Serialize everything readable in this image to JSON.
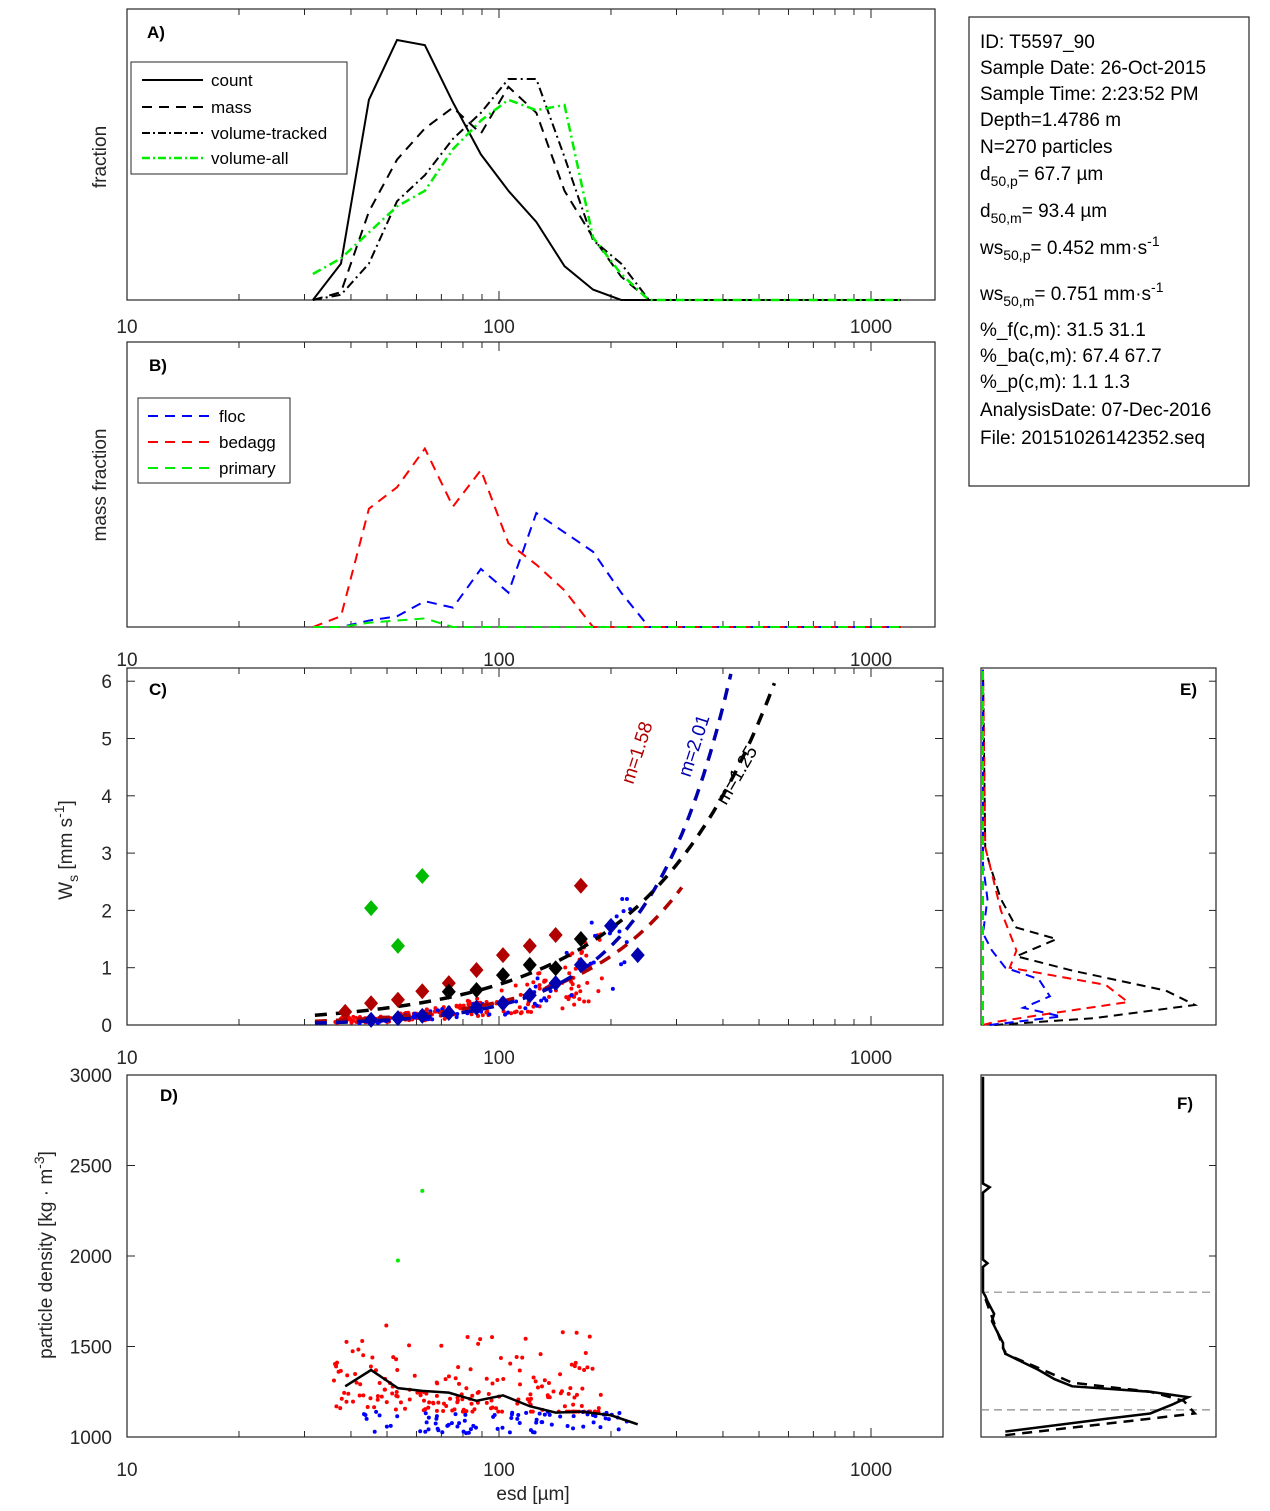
{
  "info_box": {
    "lines": [
      {
        "text": "ID: T5597_90"
      },
      {
        "text": "Sample Date: 26-Oct-2015"
      },
      {
        "text": "Sample Time:  2:23:52 PM"
      },
      {
        "text": "Depth=1.4786 m"
      },
      {
        "text": "N=270 particles"
      },
      {
        "base": "d",
        "sub": "50,p",
        "rest": "=  67.7 µm"
      },
      {
        "base": "d",
        "sub": "50,m",
        "rest": "=  93.4 µm"
      },
      {
        "base": "ws",
        "sub": "50,p",
        "rest": "= 0.452 mm·s",
        "sup": "-1"
      },
      {
        "base": "ws",
        "sub": "50,m",
        "rest": "= 0.751 mm·s",
        "sup": "-1"
      },
      {
        "text": "%_f(c,m): 31.5 31.1"
      },
      {
        "text": "%_ba(c,m): 67.4 67.7"
      },
      {
        "text": "%_p(c,m): 1.1 1.3"
      },
      {
        "text": "AnalysisDate: 07-Dec-2016"
      },
      {
        "text": "File: 20151026142352.seq"
      }
    ]
  },
  "chart_data": [
    {
      "id": "A",
      "panel_label": "A)",
      "type": "line",
      "xscale": "log",
      "xlim": [
        10,
        1300
      ],
      "xticks": [
        10,
        100,
        1000
      ],
      "xtick_labels": [
        "10",
        "100",
        "1000"
      ],
      "ylabel": "fraction",
      "ylim": [
        0,
        1
      ],
      "legend": {
        "placement": "top-left",
        "entries": [
          "count",
          "mass",
          "volume-tracked",
          "volume-all"
        ]
      },
      "x": [
        31.6,
        37.6,
        44.7,
        53.2,
        63.2,
        75.2,
        89.4,
        106,
        126,
        150,
        179,
        213,
        253,
        301,
        358,
        425,
        506,
        601,
        715,
        851,
        1012,
        1203
      ],
      "series": [
        {
          "name": "count",
          "style": "solid",
          "color": "#000000",
          "values": [
            0,
            0.14,
            0.77,
            1.0,
            0.98,
            0.76,
            0.56,
            0.42,
            0.3,
            0.13,
            0.04,
            0,
            0,
            0,
            0,
            0,
            0,
            0,
            0,
            0,
            0,
            0
          ]
        },
        {
          "name": "mass",
          "style": "dashed",
          "color": "#000000",
          "values": [
            0,
            0.03,
            0.34,
            0.54,
            0.66,
            0.74,
            0.64,
            0.82,
            0.72,
            0.42,
            0.24,
            0.09,
            0,
            0,
            0,
            0,
            0,
            0,
            0,
            0,
            0,
            0
          ]
        },
        {
          "name": "volume-tracked",
          "style": "dashdot",
          "color": "#000000",
          "values": [
            0,
            0.02,
            0.14,
            0.38,
            0.48,
            0.62,
            0.72,
            0.85,
            0.85,
            0.55,
            0.23,
            0.14,
            0,
            0,
            0,
            0,
            0,
            0,
            0,
            0,
            0,
            0
          ]
        },
        {
          "name": "volume-all",
          "style": "dashdot",
          "color": "#00ee00",
          "values": [
            0.1,
            0.16,
            0.26,
            0.36,
            0.42,
            0.58,
            0.69,
            0.77,
            0.73,
            0.75,
            0.24,
            0.1,
            0,
            0,
            0,
            0,
            0,
            0,
            0,
            0,
            0,
            0
          ]
        }
      ]
    },
    {
      "id": "B",
      "panel_label": "B)",
      "type": "line",
      "xscale": "log",
      "xlim": [
        10,
        1300
      ],
      "xticks": [
        10,
        100,
        1000
      ],
      "xtick_labels": [
        "10",
        "100",
        "1000"
      ],
      "ylabel": "mass fraction",
      "ylim": [
        0,
        1
      ],
      "legend": {
        "placement": "top-left",
        "entries": [
          "floc",
          "bedagg",
          "primary"
        ]
      },
      "x": [
        31.6,
        37.6,
        44.7,
        53.2,
        63.2,
        75.2,
        89.4,
        106,
        126,
        150,
        179,
        213,
        253,
        301,
        358,
        425,
        506,
        601,
        715,
        851,
        1012,
        1203
      ],
      "series": [
        {
          "name": "floc",
          "color": "#0000ff",
          "values": [
            0,
            0,
            0.03,
            0.05,
            0.12,
            0.09,
            0.27,
            0.16,
            0.53,
            0.44,
            0.35,
            0.16,
            0,
            0,
            0,
            0,
            0,
            0,
            0,
            0,
            0,
            0
          ]
        },
        {
          "name": "bedagg",
          "color": "#ff0000",
          "values": [
            0,
            0.05,
            0.55,
            0.65,
            0.83,
            0.56,
            0.73,
            0.39,
            0.29,
            0.17,
            0,
            0,
            0,
            0,
            0,
            0,
            0,
            0,
            0,
            0,
            0,
            0
          ]
        },
        {
          "name": "primary",
          "color": "#00ee00",
          "values": [
            0,
            0,
            0.02,
            0.03,
            0.04,
            0,
            0,
            0,
            0,
            0,
            0,
            0,
            0,
            0,
            0,
            0,
            0,
            0,
            0,
            0,
            0,
            0
          ]
        }
      ]
    },
    {
      "id": "C",
      "panel_label": "C)",
      "type": "scatter",
      "xscale": "log",
      "xlim": [
        10,
        1550
      ],
      "xticks": [
        10,
        100,
        1000
      ],
      "xtick_labels": [
        "10",
        "100",
        "1000"
      ],
      "ylabel": "W_s [mm s^-1]",
      "ylim": [
        0,
        6.2
      ],
      "yticks": [
        0,
        1,
        2,
        3,
        4,
        5,
        6
      ],
      "ytick_labels": [
        "0",
        "1",
        "2",
        "3",
        "4",
        "5",
        "6"
      ],
      "fits": [
        {
          "name": "bedagg fit",
          "label": "m=1.58",
          "color": "#b00000",
          "exponent": 1.58,
          "coef": 0.000278,
          "x_range": [
            32,
            310
          ]
        },
        {
          "name": "floc fit",
          "label": "m=2.01",
          "color": "#0000b0",
          "exponent": 2.01,
          "coef": 3.27e-05,
          "x_range": [
            32,
            420
          ]
        },
        {
          "name": "all fit",
          "label": "m=1.25",
          "color": "#000000",
          "exponent": 1.25,
          "coef": 0.00224,
          "x_range": [
            32,
            550
          ]
        }
      ],
      "binned": [
        {
          "name": "bedagg median",
          "color": "#b00000",
          "x": [
            38.6,
            45.3,
            53.5,
            62.2,
            73.3,
            87,
            102.5,
            121,
            142,
            166
          ],
          "y": [
            0.23,
            0.38,
            0.44,
            0.59,
            0.73,
            0.96,
            1.22,
            1.38,
            1.57,
            2.43
          ]
        },
        {
          "name": "floc median",
          "color": "#0000b0",
          "x": [
            45.3,
            53.5,
            62.2,
            73.3,
            87,
            102.5,
            121,
            142,
            166,
            200,
            236
          ],
          "y": [
            0.09,
            0.12,
            0.16,
            0.21,
            0.3,
            0.38,
            0.52,
            0.73,
            1.05,
            1.73,
            1.22
          ]
        },
        {
          "name": "all median",
          "color": "#000000",
          "x": [
            73.3,
            87,
            102.5,
            121,
            142,
            166
          ],
          "y": [
            0.58,
            0.61,
            0.87,
            1.05,
            0.99,
            1.5
          ]
        },
        {
          "name": "primary",
          "color": "#00bb00",
          "x": [
            45.3,
            53.5,
            62.2
          ],
          "y": [
            2.04,
            1.38,
            2.6
          ]
        }
      ],
      "scatter_series": [
        {
          "name": "bedagg particles",
          "color": "#ff0000"
        },
        {
          "name": "floc particles",
          "color": "#0000ff"
        }
      ]
    },
    {
      "id": "D",
      "panel_label": "D)",
      "type": "scatter",
      "xscale": "log",
      "xlim": [
        10,
        1550
      ],
      "xticks": [
        10,
        100,
        1000
      ],
      "xtick_labels": [
        "10",
        "100",
        "1000"
      ],
      "xlabel": "esd [µm]",
      "ylabel": "particle density [kg · m^-3]",
      "ylim": [
        1000,
        3000
      ],
      "yticks": [
        1000,
        1500,
        2000,
        2500,
        3000
      ],
      "ytick_labels": [
        "1000",
        "1500",
        "2000",
        "2500",
        "3000"
      ],
      "median_line": {
        "color": "#000000",
        "x": [
          38.6,
          45.3,
          53.5,
          62.2,
          73.3,
          87,
          102.5,
          121,
          142,
          166,
          200,
          236
        ],
        "y": [
          1280,
          1370,
          1270,
          1255,
          1245,
          1200,
          1230,
          1170,
          1135,
          1140,
          1120,
          1070
        ]
      },
      "primary_points": {
        "color": "#00ee00",
        "x": [
          53.5,
          62.2
        ],
        "y": [
          1975,
          2360
        ]
      },
      "scatter_series": [
        {
          "name": "bedagg particles",
          "color": "#ff0000"
        },
        {
          "name": "floc particles",
          "color": "#0000ff"
        }
      ]
    },
    {
      "id": "E",
      "panel_label": "E)",
      "type": "line",
      "note": "Settling velocity distributions (horizontal: fraction, vertical: W_s)",
      "ylim": [
        0,
        6.2
      ],
      "xlim": [
        0,
        1
      ],
      "series": [
        {
          "name": "all",
          "style": "dashed",
          "color": "#000000",
          "y": [
            0,
            0.12,
            0.35,
            0.6,
            0.95,
            1.2,
            1.5,
            1.7,
            2.2,
            2.8,
            3.1,
            6.2
          ],
          "x": [
            0.05,
            0.5,
            0.95,
            0.82,
            0.4,
            0.15,
            0.33,
            0.15,
            0.08,
            0.03,
            0.01,
            0
          ]
        },
        {
          "name": "bedagg",
          "style": "dashed",
          "color": "#ff0000",
          "y": [
            0,
            0.05,
            0.2,
            0.4,
            0.7,
            1.0,
            1.3,
            2.0,
            2.8,
            3.1,
            6.2
          ],
          "x": [
            0.0,
            0.05,
            0.3,
            0.65,
            0.55,
            0.12,
            0.15,
            0.08,
            0.03,
            0.01,
            0
          ]
        },
        {
          "name": "floc",
          "style": "dashed",
          "color": "#0000ff",
          "y": [
            0,
            0.15,
            0.3,
            0.5,
            0.8,
            1.0,
            1.3,
            1.6,
            2.2,
            2.8,
            6.2
          ],
          "x": [
            0.03,
            0.35,
            0.18,
            0.3,
            0.25,
            0.1,
            0.04,
            0.0,
            0.02,
            0.0,
            0
          ]
        },
        {
          "name": "primary",
          "style": "dashed",
          "color": "#00ee00",
          "y": [
            0,
            6.2
          ],
          "x": [
            0,
            0
          ]
        }
      ]
    },
    {
      "id": "F",
      "panel_label": "F)",
      "type": "line",
      "note": "Density distributions (horizontal: fraction, vertical: density)",
      "ylim": [
        1000,
        3000
      ],
      "xlim": [
        0,
        1
      ],
      "reference_lines": {
        "color": "#888888",
        "y": [
          1150,
          1800
        ]
      },
      "series": [
        {
          "name": "count",
          "style": "solid",
          "color": "#000000",
          "y": [
            1030,
            1100,
            1130,
            1180,
            1220,
            1250,
            1280,
            1320,
            1370,
            1460,
            1470,
            1490,
            1520,
            1590,
            1640,
            1680,
            1750,
            1780,
            1800,
            1940,
            1960,
            1980,
            2350,
            2380,
            2400,
            2990
          ],
          "x": [
            0.1,
            0.55,
            0.75,
            0.85,
            0.92,
            0.75,
            0.4,
            0.32,
            0.25,
            0.1,
            0.1,
            0.09,
            0.09,
            0.06,
            0.04,
            0.05,
            0.02,
            0.01,
            0,
            0,
            0.02,
            0,
            0,
            0.03,
            0,
            0
          ]
        },
        {
          "name": "mass",
          "style": "dashed",
          "color": "#000000",
          "y": [
            1010,
            1080,
            1130,
            1200,
            1250,
            1300,
            1370,
            1460,
            1800
          ],
          "x": [
            0.1,
            0.6,
            0.95,
            0.9,
            0.75,
            0.4,
            0.27,
            0.1,
            0
          ]
        }
      ]
    }
  ]
}
